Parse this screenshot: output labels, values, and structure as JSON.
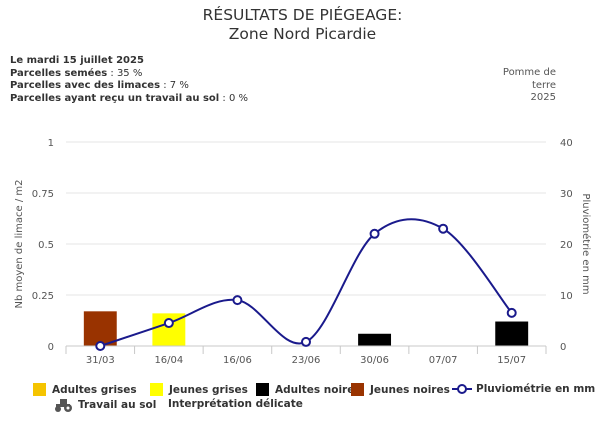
{
  "header": {
    "title": "RÉSULTATS DE PIÉGEAGE:",
    "subtitle": "Zone Nord Picardie"
  },
  "info": {
    "date": "Le mardi 15 juillet 2025",
    "lines": [
      {
        "label": "Parcelles semées",
        "value": "35 %"
      },
      {
        "label": "Parcelles avec des limaces",
        "value": "7 %"
      },
      {
        "label": "Parcelles ayant reçu un travail au sol",
        "value": "0 %"
      }
    ]
  },
  "side_note": {
    "line1": "Pomme de",
    "line2": "terre",
    "line3": "2025"
  },
  "legend": {
    "adultes_grises": "Adultes grises",
    "jeunes_grises": "Jeunes grises",
    "adultes_noires": "Adultes noires",
    "jeunes_noires": "Jeunes noires",
    "pluvio": "Pluviométrie en mm",
    "travail": "Travail au sol",
    "interpretation": "Interprétation délicate"
  },
  "colors": {
    "adultes_grises": "#f5c400",
    "jeunes_grises": "#ffff00",
    "adultes_noires": "#000000",
    "jeunes_noires": "#993300",
    "pluvio": "#1a1a8c",
    "grid": "#e6e6e6",
    "axis": "#c8c8c8"
  },
  "chart_data": {
    "type": "bar",
    "categories": [
      "31/03",
      "16/04",
      "16/06",
      "23/06",
      "30/06",
      "07/07",
      "15/07"
    ],
    "ylabel": "Nb moyen de limace / m2",
    "ylabel2": "Pluviométrie en mm",
    "ylim": [
      0,
      1
    ],
    "ylim2": [
      0,
      40
    ],
    "yticks": [
      "0",
      "0.25",
      "0.5",
      "0.75",
      "1"
    ],
    "yticks2": [
      "0",
      "10",
      "20",
      "30",
      "40"
    ],
    "series": [
      {
        "name": "Adultes grises",
        "values": [
          0,
          0,
          0,
          0,
          0,
          0,
          0
        ]
      },
      {
        "name": "Jeunes grises",
        "values": [
          0,
          0.16,
          0,
          0,
          0,
          0,
          0
        ]
      },
      {
        "name": "Adultes noires",
        "values": [
          0,
          0,
          0,
          0,
          0.06,
          0,
          0.12
        ]
      },
      {
        "name": "Jeunes noires",
        "values": [
          0.17,
          0,
          0,
          0,
          0,
          0,
          0
        ]
      }
    ],
    "line_series": {
      "name": "Pluviométrie en mm",
      "values": [
        0,
        4.5,
        9,
        0.8,
        22,
        23,
        6.5
      ]
    },
    "grid": true,
    "legend_position": "bottom"
  }
}
